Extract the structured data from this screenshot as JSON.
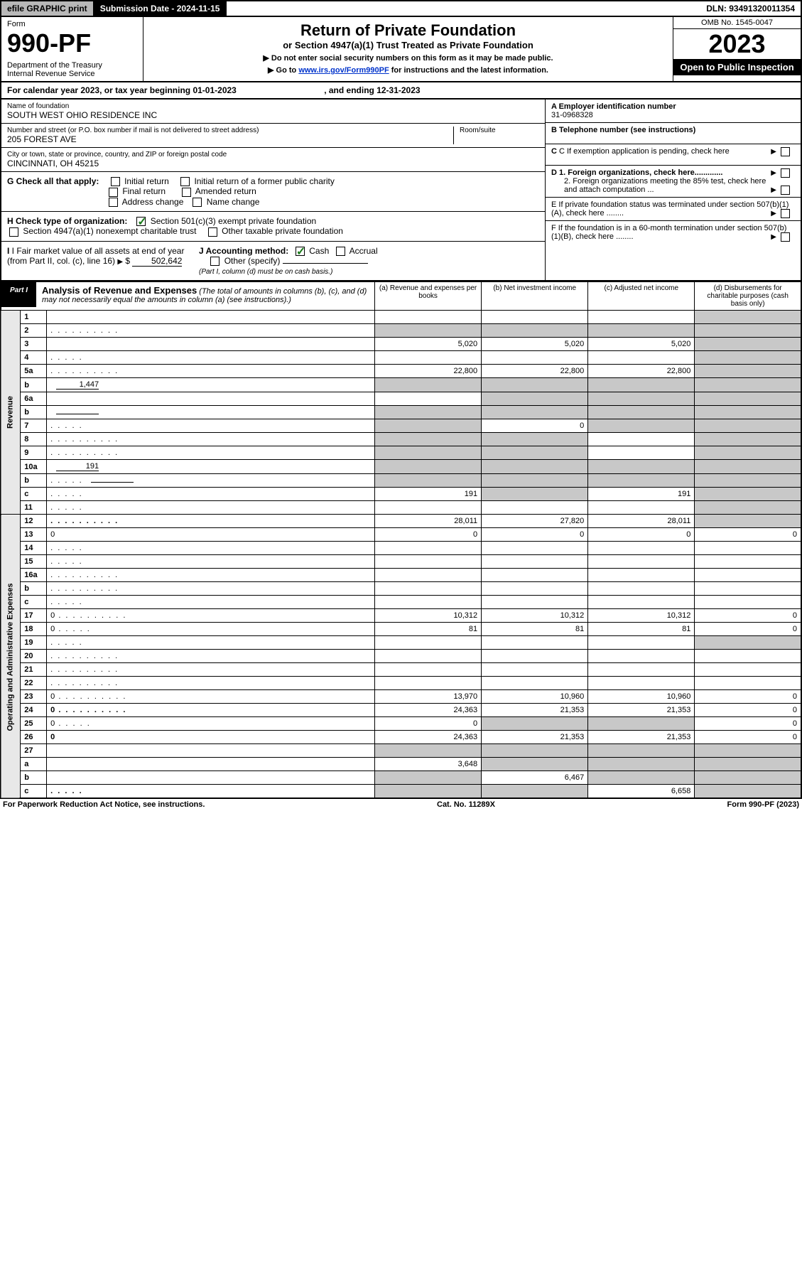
{
  "topbar": {
    "efile": "efile GRAPHIC print",
    "subdate_label": "Submission Date - ",
    "subdate": "2024-11-15",
    "dln_label": "DLN: ",
    "dln": "93491320011354"
  },
  "header": {
    "form_label": "Form",
    "form_num": "990-PF",
    "dept": "Department of the Treasury",
    "irs": "Internal Revenue Service",
    "title": "Return of Private Foundation",
    "subtitle": "or Section 4947(a)(1) Trust Treated as Private Foundation",
    "note1": "▶ Do not enter social security numbers on this form as it may be made public.",
    "note2_pre": "▶ Go to ",
    "note2_link": "www.irs.gov/Form990PF",
    "note2_post": " for instructions and the latest information.",
    "omb": "OMB No. 1545-0047",
    "year": "2023",
    "open": "Open to Public Inspection"
  },
  "calyear": {
    "text_pre": "For calendar year 2023, or tax year beginning ",
    "begin": "01-01-2023",
    "mid": " , and ending ",
    "end": "12-31-2023"
  },
  "entity": {
    "name_label": "Name of foundation",
    "name": "SOUTH WEST OHIO RESIDENCE INC",
    "addr_label": "Number and street (or P.O. box number if mail is not delivered to street address)",
    "addr": "205 FOREST AVE",
    "room_label": "Room/suite",
    "room": "",
    "city_label": "City or town, state or province, country, and ZIP or foreign postal code",
    "city": "CINCINNATI, OH  45215",
    "ein_label": "A Employer identification number",
    "ein": "31-0968328",
    "phone_label": "B Telephone number (see instructions)",
    "phone": "",
    "c_label": "C If exemption application is pending, check here",
    "d1": "D 1. Foreign organizations, check here.............",
    "d2": "2. Foreign organizations meeting the 85% test, check here and attach computation ...",
    "e_label": "E  If private foundation status was terminated under section 507(b)(1)(A), check here ........",
    "f_label": "F  If the foundation is in a 60-month termination under section 507(b)(1)(B), check here ........"
  },
  "checks": {
    "g_label": "G Check all that apply:",
    "initial": "Initial return",
    "initial_former": "Initial return of a former public charity",
    "final": "Final return",
    "amended": "Amended return",
    "addr_change": "Address change",
    "name_change": "Name change",
    "h_label": "H Check type of organization:",
    "h_501c3": "Section 501(c)(3) exempt private foundation",
    "h_4947": "Section 4947(a)(1) nonexempt charitable trust",
    "h_other": "Other taxable private foundation",
    "i_label": "I Fair market value of all assets at end of year (from Part II, col. (c), line 16)",
    "i_val": "502,642",
    "j_label": "J Accounting method:",
    "j_cash": "Cash",
    "j_accrual": "Accrual",
    "j_other": "Other (specify)",
    "j_note": "(Part I, column (d) must be on cash basis.)"
  },
  "part1": {
    "tag": "Part I",
    "title": "Analysis of Revenue and Expenses",
    "note": " (The total of amounts in columns (b), (c), and (d) may not necessarily equal the amounts in column (a) (see instructions).)",
    "col_a": "(a)   Revenue and expenses per books",
    "col_b": "(b)   Net investment income",
    "col_c": "(c)   Adjusted net income",
    "col_d": "(d)   Disbursements for charitable purposes (cash basis only)"
  },
  "side": {
    "revenue": "Revenue",
    "opex": "Operating and Administrative Expenses"
  },
  "rows": [
    {
      "n": "1",
      "d": "",
      "a": "",
      "b": "",
      "c": "",
      "shd": [
        "d"
      ]
    },
    {
      "n": "2",
      "d": "",
      "dots": true,
      "a": "",
      "b": "",
      "c": "",
      "shd": [
        "a",
        "b",
        "c",
        "d"
      ],
      "checkmark": true
    },
    {
      "n": "3",
      "d": "",
      "a": "5,020",
      "b": "5,020",
      "c": "5,020",
      "shd": [
        "d"
      ]
    },
    {
      "n": "4",
      "d": "",
      "dots": "s",
      "a": "",
      "b": "",
      "c": "",
      "shd": [
        "d"
      ]
    },
    {
      "n": "5a",
      "d": "",
      "dots": true,
      "a": "22,800",
      "b": "22,800",
      "c": "22,800",
      "shd": [
        "d"
      ]
    },
    {
      "n": "b",
      "d": "",
      "inline": "1,447",
      "a": "",
      "b": "",
      "c": "",
      "shd": [
        "a",
        "b",
        "c",
        "d"
      ]
    },
    {
      "n": "6a",
      "d": "",
      "a": "",
      "b": "",
      "c": "",
      "shd": [
        "b",
        "c",
        "d"
      ]
    },
    {
      "n": "b",
      "d": "",
      "inline": "",
      "underline": true,
      "a": "",
      "b": "",
      "c": "",
      "shd": [
        "a",
        "b",
        "c",
        "d"
      ]
    },
    {
      "n": "7",
      "d": "",
      "dots": "s",
      "a": "",
      "b": "0",
      "c": "",
      "shd": [
        "a",
        "c",
        "d"
      ]
    },
    {
      "n": "8",
      "d": "",
      "dots": true,
      "a": "",
      "b": "",
      "c": "",
      "shd": [
        "a",
        "b",
        "d"
      ]
    },
    {
      "n": "9",
      "d": "",
      "dots": true,
      "a": "",
      "b": "",
      "c": "",
      "shd": [
        "a",
        "b",
        "d"
      ]
    },
    {
      "n": "10a",
      "d": "",
      "inline": "191",
      "a": "",
      "b": "",
      "c": "",
      "shd": [
        "a",
        "b",
        "c",
        "d"
      ]
    },
    {
      "n": "b",
      "d": "",
      "dots": "s",
      "inline": "",
      "underline": true,
      "a": "",
      "b": "",
      "c": "",
      "shd": [
        "a",
        "b",
        "c",
        "d"
      ]
    },
    {
      "n": "c",
      "d": "",
      "dots": "s",
      "a": "191",
      "b": "",
      "c": "191",
      "shd": [
        "b",
        "d"
      ]
    },
    {
      "n": "11",
      "d": "",
      "dots": "s",
      "a": "",
      "b": "",
      "c": "",
      "shd": [
        "d"
      ]
    },
    {
      "n": "12",
      "d": "",
      "dots": true,
      "bold": true,
      "a": "28,011",
      "b": "27,820",
      "c": "28,011",
      "shd": [
        "d"
      ]
    },
    {
      "n": "13",
      "d": "0",
      "a": "0",
      "b": "0",
      "c": "0"
    },
    {
      "n": "14",
      "d": "",
      "dots": "s",
      "a": "",
      "b": "",
      "c": ""
    },
    {
      "n": "15",
      "d": "",
      "dots": "s",
      "a": "",
      "b": "",
      "c": ""
    },
    {
      "n": "16a",
      "d": "",
      "dots": true,
      "a": "",
      "b": "",
      "c": ""
    },
    {
      "n": "b",
      "d": "",
      "dots": true,
      "a": "",
      "b": "",
      "c": ""
    },
    {
      "n": "c",
      "d": "",
      "dots": "s",
      "a": "",
      "b": "",
      "c": ""
    },
    {
      "n": "17",
      "d": "0",
      "dots": true,
      "a": "10,312",
      "b": "10,312",
      "c": "10,312"
    },
    {
      "n": "18",
      "d": "0",
      "dots": "s",
      "a": "81",
      "b": "81",
      "c": "81"
    },
    {
      "n": "19",
      "d": "",
      "dots": "s",
      "a": "",
      "b": "",
      "c": "",
      "shd": [
        "d"
      ]
    },
    {
      "n": "20",
      "d": "",
      "dots": true,
      "a": "",
      "b": "",
      "c": ""
    },
    {
      "n": "21",
      "d": "",
      "dots": true,
      "a": "",
      "b": "",
      "c": ""
    },
    {
      "n": "22",
      "d": "",
      "dots": true,
      "a": "",
      "b": "",
      "c": ""
    },
    {
      "n": "23",
      "d": "0",
      "dots": true,
      "a": "13,970",
      "b": "10,960",
      "c": "10,960"
    },
    {
      "n": "24",
      "d": "0",
      "dots": true,
      "bold": true,
      "a": "24,363",
      "b": "21,353",
      "c": "21,353"
    },
    {
      "n": "25",
      "d": "0",
      "dots": "s",
      "a": "0",
      "b": "",
      "c": "",
      "shd": [
        "b",
        "c"
      ]
    },
    {
      "n": "26",
      "d": "0",
      "bold": true,
      "a": "24,363",
      "b": "21,353",
      "c": "21,353"
    },
    {
      "n": "27",
      "d": "",
      "a": "",
      "b": "",
      "c": "",
      "shd": [
        "a",
        "b",
        "c",
        "d"
      ]
    },
    {
      "n": "a",
      "d": "",
      "bold": true,
      "a": "3,648",
      "b": "",
      "c": "",
      "shd": [
        "b",
        "c",
        "d"
      ]
    },
    {
      "n": "b",
      "d": "",
      "bold": true,
      "a": "",
      "b": "6,467",
      "c": "",
      "shd": [
        "a",
        "c",
        "d"
      ]
    },
    {
      "n": "c",
      "d": "",
      "dots": "s",
      "bold": true,
      "a": "",
      "b": "",
      "c": "6,658",
      "shd": [
        "a",
        "b",
        "d"
      ]
    }
  ],
  "footer": {
    "left": "For Paperwork Reduction Act Notice, see instructions.",
    "mid": "Cat. No. 11289X",
    "right": "Form 990-PF (2023)"
  }
}
